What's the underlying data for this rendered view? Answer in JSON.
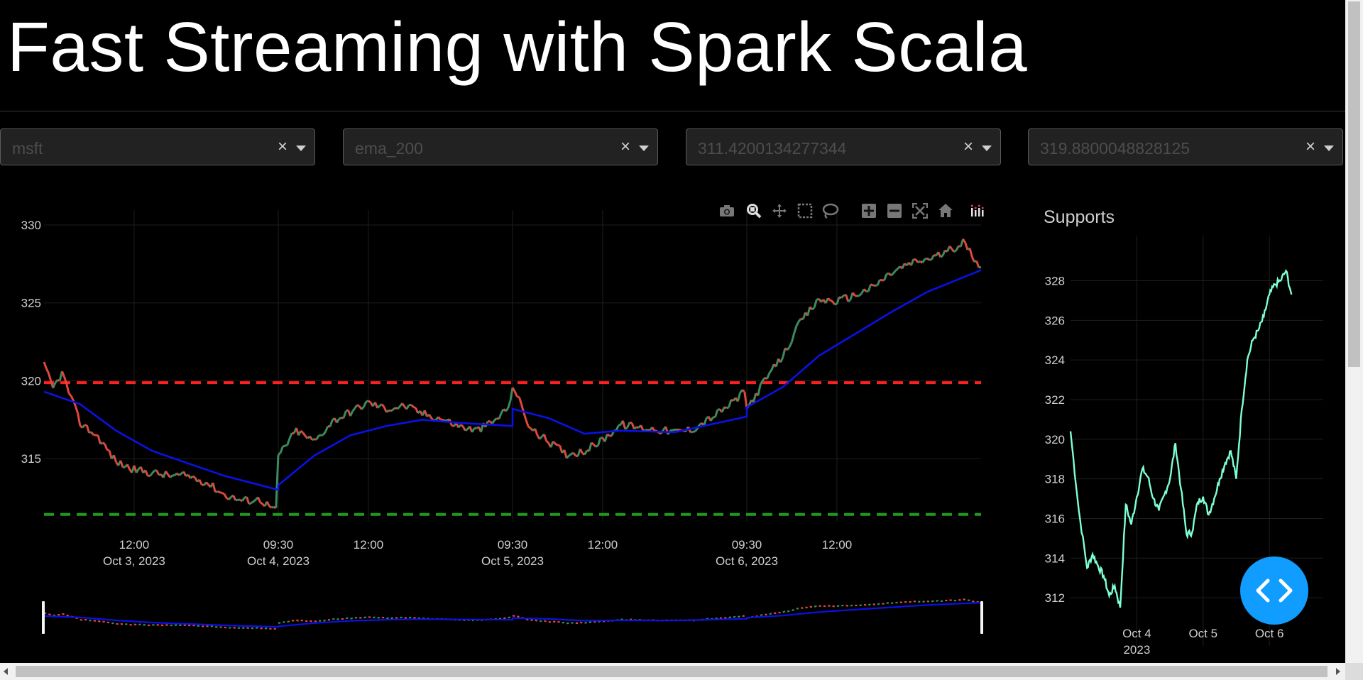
{
  "header": {
    "title": "Fast Streaming with Spark Scala"
  },
  "controls": {
    "dropdowns": [
      {
        "value": "msft",
        "clear": "×"
      },
      {
        "value": "ema_200",
        "clear": "×"
      },
      {
        "value": "311.4200134277344",
        "clear": "×"
      },
      {
        "value": "319.8800048828125",
        "clear": "×"
      }
    ]
  },
  "modebar": {
    "buttons": [
      "camera-icon",
      "zoom-icon",
      "pan-icon",
      "box-select-icon",
      "lasso-select-icon",
      "zoom-in-icon",
      "zoom-out-icon",
      "autoscale-icon",
      "reset-axes-icon",
      "plotly-logo-icon"
    ]
  },
  "colors": {
    "price_up": "#3d8a5f",
    "price_down": "#e0483c",
    "ema": "#0a12e6",
    "resistance": "#ff1f1f",
    "support": "#1f9a1f",
    "supports_line": "#7fffd4",
    "fab": "#119dff"
  },
  "chart_data": [
    {
      "type": "line",
      "title": "",
      "ylim": [
        311,
        330.5
      ],
      "yticks": [
        315,
        320,
        325,
        330
      ],
      "xticks": [
        {
          "x": "2023-10-03 12:00",
          "label": "12:00",
          "sublabel": "Oct 3, 2023"
        },
        {
          "x": "2023-10-04 09:30",
          "label": "09:30",
          "sublabel": "Oct 4, 2023"
        },
        {
          "x": "2023-10-04 12:00",
          "label": "12:00",
          "sublabel": ""
        },
        {
          "x": "2023-10-05 09:30",
          "label": "09:30",
          "sublabel": "Oct 5, 2023"
        },
        {
          "x": "2023-10-05 12:00",
          "label": "12:00",
          "sublabel": ""
        },
        {
          "x": "2023-10-06 09:30",
          "label": "09:30",
          "sublabel": "Oct 6, 2023"
        },
        {
          "x": "2023-10-06 12:00",
          "label": "12:00",
          "sublabel": ""
        }
      ],
      "x_session_order": [
        "2023-10-03",
        "2023-10-04",
        "2023-10-05",
        "2023-10-06"
      ],
      "grid": true,
      "legend": "none",
      "rangeslider": true,
      "series": [
        {
          "kind": "price",
          "x": [
            "2023-10-03 09:30",
            "2023-10-03 09:45",
            "2023-10-03 10:00",
            "2023-10-03 10:30",
            "2023-10-03 11:00",
            "2023-10-03 11:30",
            "2023-10-03 12:00",
            "2023-10-03 12:30",
            "2023-10-03 13:00",
            "2023-10-03 13:30",
            "2023-10-03 14:00",
            "2023-10-03 14:30",
            "2023-10-03 15:00",
            "2023-10-03 15:30",
            "2023-10-03 16:00",
            "2023-10-04 09:30",
            "2023-10-04 10:00",
            "2023-10-04 10:30",
            "2023-10-04 11:00",
            "2023-10-04 11:30",
            "2023-10-04 12:00",
            "2023-10-04 12:30",
            "2023-10-04 13:00",
            "2023-10-04 13:30",
            "2023-10-04 14:00",
            "2023-10-04 14:30",
            "2023-10-04 15:00",
            "2023-10-04 15:30",
            "2023-10-04 16:00",
            "2023-10-05 09:30",
            "2023-10-05 10:00",
            "2023-10-05 10:30",
            "2023-10-05 11:00",
            "2023-10-05 11:30",
            "2023-10-05 12:00",
            "2023-10-05 12:30",
            "2023-10-05 13:00",
            "2023-10-05 13:30",
            "2023-10-05 14:00",
            "2023-10-05 14:30",
            "2023-10-05 15:00",
            "2023-10-05 15:30",
            "2023-10-05 16:00",
            "2023-10-06 09:30",
            "2023-10-06 10:00",
            "2023-10-06 10:30",
            "2023-10-06 11:00",
            "2023-10-06 11:30",
            "2023-10-06 12:00",
            "2023-10-06 12:30",
            "2023-10-06 13:00",
            "2023-10-06 13:30",
            "2023-10-06 14:00",
            "2023-10-06 14:30",
            "2023-10-06 15:00",
            "2023-10-06 15:30",
            "2023-10-06 16:00"
          ],
          "values": [
            321.0,
            319.5,
            320.5,
            317.3,
            316.4,
            314.8,
            314.3,
            314.1,
            313.9,
            313.9,
            313.5,
            312.7,
            312.3,
            312.4,
            311.5,
            315.2,
            316.8,
            316.1,
            317.4,
            318.0,
            318.6,
            318.2,
            318.4,
            317.9,
            317.6,
            317.1,
            316.8,
            317.4,
            318.6,
            319.8,
            316.9,
            316.1,
            315.3,
            315.5,
            316.2,
            317.2,
            317.0,
            316.9,
            316.7,
            316.9,
            317.6,
            318.4,
            319.4,
            318.2,
            320.0,
            321.6,
            323.8,
            325.2,
            325.1,
            325.5,
            326.0,
            326.9,
            327.5,
            327.8,
            328.2,
            328.9,
            327.3
          ]
        },
        {
          "kind": "ema",
          "x": [
            "2023-10-03 09:30",
            "2023-10-03 10:30",
            "2023-10-03 11:30",
            "2023-10-03 12:30",
            "2023-10-03 13:30",
            "2023-10-03 14:30",
            "2023-10-03 16:00",
            "2023-10-04 09:30",
            "2023-10-04 10:30",
            "2023-10-04 11:30",
            "2023-10-04 12:30",
            "2023-10-04 13:30",
            "2023-10-04 14:30",
            "2023-10-04 16:00",
            "2023-10-05 09:30",
            "2023-10-05 10:30",
            "2023-10-05 11:30",
            "2023-10-05 12:30",
            "2023-10-05 14:00",
            "2023-10-05 16:00",
            "2023-10-06 09:30",
            "2023-10-06 10:30",
            "2023-10-06 11:30",
            "2023-10-06 12:30",
            "2023-10-06 13:30",
            "2023-10-06 14:30",
            "2023-10-06 16:00"
          ],
          "values": [
            319.3,
            318.5,
            316.8,
            315.5,
            314.7,
            313.9,
            313.0,
            313.3,
            315.2,
            316.5,
            317.1,
            317.5,
            317.3,
            317.1,
            318.2,
            317.6,
            316.6,
            316.8,
            316.7,
            317.7,
            318.3,
            319.6,
            321.6,
            323.0,
            324.4,
            325.7,
            327.1
          ]
        },
        {
          "kind": "resistance",
          "value": 319.8800048828125
        },
        {
          "kind": "support",
          "value": 311.4200134277344
        }
      ]
    },
    {
      "type": "line",
      "title": "Supports",
      "ylim": [
        311,
        329.2
      ],
      "yticks": [
        312,
        314,
        316,
        318,
        320,
        322,
        324,
        326,
        328
      ],
      "xticks": [
        {
          "x": "2023-10-04",
          "label": "Oct 4",
          "sublabel": "2023"
        },
        {
          "x": "2023-10-05",
          "label": "Oct 5",
          "sublabel": ""
        },
        {
          "x": "2023-10-06",
          "label": "Oct 6",
          "sublabel": ""
        }
      ],
      "grid": true,
      "series": [
        {
          "x": [
            "2023-10-03 00:00",
            "2023-10-03 03:00",
            "2023-10-03 06:00",
            "2023-10-03 08:00",
            "2023-10-03 10:00",
            "2023-10-03 12:00",
            "2023-10-03 14:00",
            "2023-10-03 16:00",
            "2023-10-03 18:00",
            "2023-10-03 20:00",
            "2023-10-03 22:00",
            "2023-10-04 00:00",
            "2023-10-04 02:00",
            "2023-10-04 04:00",
            "2023-10-04 06:00",
            "2023-10-04 08:00",
            "2023-10-04 10:00",
            "2023-10-04 12:00",
            "2023-10-04 14:00",
            "2023-10-04 16:00",
            "2023-10-04 18:00",
            "2023-10-04 20:00",
            "2023-10-04 22:00",
            "2023-10-05 00:00",
            "2023-10-05 02:00",
            "2023-10-05 04:00",
            "2023-10-05 06:00",
            "2023-10-05 08:00",
            "2023-10-05 10:00",
            "2023-10-05 12:00",
            "2023-10-05 14:00",
            "2023-10-05 16:00",
            "2023-10-05 18:00",
            "2023-10-05 20:00",
            "2023-10-05 22:00",
            "2023-10-06 00:00",
            "2023-10-06 02:00",
            "2023-10-06 04:00",
            "2023-10-06 06:00",
            "2023-10-06 08:00",
            "2023-10-06 10:00",
            "2023-10-06 12:00",
            "2023-10-06 14:00",
            "2023-10-06 16:00",
            "2023-10-06 18:00",
            "2023-10-06 19:30"
          ],
          "values": [
            320.4,
            316.4,
            313.5,
            314.2,
            313.6,
            313.1,
            312.1,
            312.6,
            311.5,
            316.7,
            315.7,
            317.1,
            318.5,
            318.1,
            317.0,
            316.4,
            317.2,
            318.0,
            319.8,
            317.5,
            315.2,
            315.3,
            316.8,
            317.1,
            316.2,
            317.0,
            318.0,
            318.8,
            319.4,
            318.0,
            321.5,
            324.0,
            325.0,
            325.5,
            326.2,
            327.3,
            327.8,
            328.0,
            328.5,
            327.3,
            327.3,
            327.3,
            327.3,
            327.3,
            327.3,
            327.3
          ]
        }
      ]
    }
  ]
}
